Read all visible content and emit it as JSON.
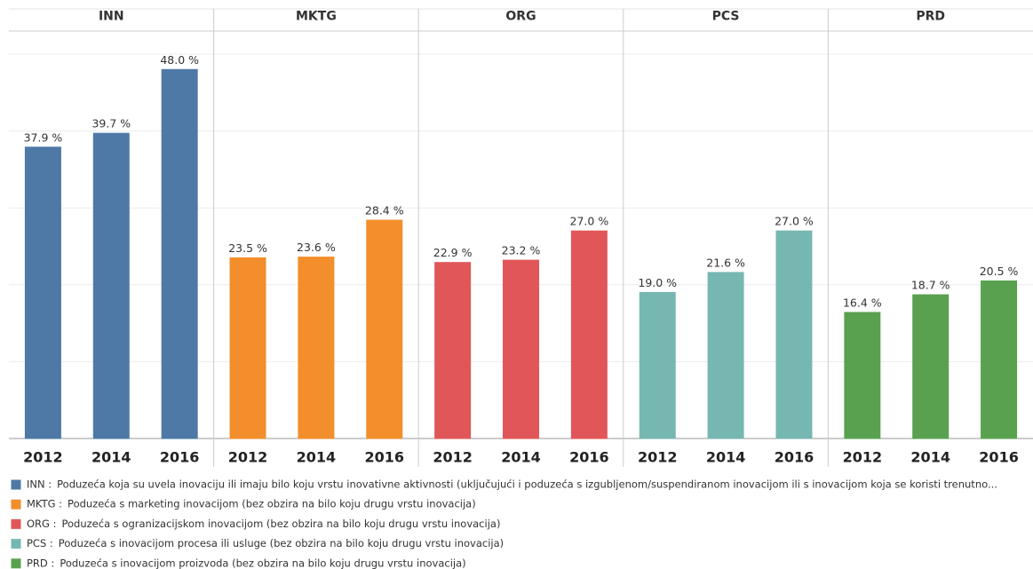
{
  "chart_data": {
    "type": "bar",
    "ylim": [
      0,
      53
    ],
    "yticks": [
      0,
      10,
      20,
      30,
      40,
      50
    ],
    "grid": true,
    "panels": [
      {
        "title": "INN",
        "color": "#4e79a7",
        "categories": [
          "2012",
          "2014",
          "2016"
        ],
        "values": [
          37.9,
          39.7,
          48.0
        ],
        "value_labels": [
          "37.9 %",
          "39.7 %",
          "48.0 %"
        ]
      },
      {
        "title": "MKTG",
        "color": "#f28e2b",
        "categories": [
          "2012",
          "2014",
          "2016"
        ],
        "values": [
          23.5,
          23.6,
          28.4
        ],
        "value_labels": [
          "23.5 %",
          "23.6 %",
          "28.4 %"
        ]
      },
      {
        "title": "ORG",
        "color": "#e15759",
        "categories": [
          "2012",
          "2014",
          "2016"
        ],
        "values": [
          22.9,
          23.2,
          27.0
        ],
        "value_labels": [
          "22.9 %",
          "23.2 %",
          "27.0 %"
        ]
      },
      {
        "title": "PCS",
        "color": "#76b7b2",
        "categories": [
          "2012",
          "2014",
          "2016"
        ],
        "values": [
          19.0,
          21.6,
          27.0
        ],
        "value_labels": [
          "19.0 %",
          "21.6 %",
          "27.0 %"
        ]
      },
      {
        "title": "PRD",
        "color": "#59a14f",
        "categories": [
          "2012",
          "2014",
          "2016"
        ],
        "values": [
          16.4,
          18.7,
          20.5
        ],
        "value_labels": [
          "16.4 %",
          "18.7 %",
          "20.5 %"
        ]
      }
    ],
    "legend": [
      {
        "label": "INN :",
        "description": "Poduzeća koja su uvela inovaciju ili imaju bilo koju vrstu inovativne aktivnosti (uključujući i poduzeća s izgubljenom/suspendiranom inovacijom ili s inovacijom koja se koristi trenutno..."
      },
      {
        "label": "MKTG :",
        "description": "Poduzeća s marketing inovacijom (bez obzira na bilo koju drugu vrstu inovacija)"
      },
      {
        "label": "ORG :",
        "description": "Poduzeća s ogranizacijskom inovacijom (bez obzira na bilo koju drugu vrstu inovacija)"
      },
      {
        "label": "PCS :",
        "description": "Poduzeća s inovacijom procesa ili usluge (bez obzira na bilo koju drugu vrstu inovacija)"
      },
      {
        "label": "PRD :",
        "description": "Poduzeća s inovacijom proizvoda (bez obzira na bilo koju drugu vrstu inovacija)"
      }
    ]
  }
}
